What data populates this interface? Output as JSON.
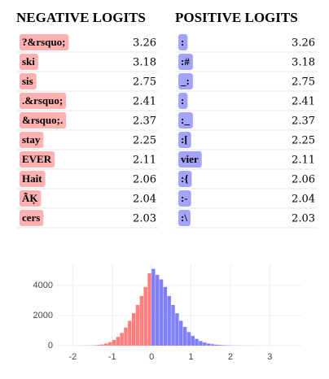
{
  "negative": {
    "title": "NEGATIVE LOGITS",
    "color": "#ffb0b0",
    "rows": [
      [
        "?&rsquo;",
        3.26
      ],
      [
        "ski",
        3.18
      ],
      [
        "sis",
        2.75
      ],
      [
        ".&rsquo;",
        2.41
      ],
      [
        "&rsquo;.",
        2.37
      ],
      [
        "stay",
        2.25
      ],
      [
        "EVER",
        2.11
      ],
      [
        "Hait",
        2.06
      ],
      [
        "ÃĶ",
        2.04
      ],
      [
        "cers",
        2.03
      ]
    ]
  },
  "positive": {
    "title": "POSITIVE LOGITS",
    "color": "#a3a3fb",
    "rows": [
      [
        ":",
        3.26
      ],
      [
        ":#",
        3.18
      ],
      [
        "_:",
        2.75
      ],
      [
        ":",
        2.41
      ],
      [
        ":_",
        2.37
      ],
      [
        ":[",
        2.25
      ],
      [
        "vier",
        2.11
      ],
      [
        ":{",
        2.06
      ],
      [
        ":-",
        2.04
      ],
      [
        ":\\",
        2.03
      ]
    ]
  },
  "chart_data": {
    "type": "histogram",
    "bins": [
      -2.0,
      -1.9,
      -1.8,
      -1.7,
      -1.6,
      -1.5,
      -1.4,
      -1.3,
      -1.2,
      -1.1,
      -1.0,
      -0.9,
      -0.8,
      -0.7,
      -0.6,
      -0.5,
      -0.4,
      -0.3,
      -0.2,
      -0.1,
      0.0,
      0.1,
      0.2,
      0.3,
      0.4,
      0.5,
      0.6,
      0.7,
      0.8,
      0.9,
      1.0,
      1.1,
      1.2,
      1.3,
      1.4,
      1.5,
      1.6,
      1.7,
      1.8,
      1.9,
      2.0,
      2.1,
      2.2,
      2.3,
      2.4,
      2.5,
      2.6,
      2.7,
      2.8,
      2.9,
      3.0,
      3.1,
      3.2,
      3.3,
      3.4,
      3.5,
      3.6
    ],
    "values": [
      2,
      3,
      5,
      8,
      15,
      25,
      45,
      80,
      140,
      230,
      380,
      580,
      850,
      1200,
      1650,
      2150,
      2700,
      3300,
      3900,
      4800,
      5100,
      4700,
      4400,
      3900,
      3300,
      2700,
      2150,
      1650,
      1250,
      900,
      650,
      450,
      310,
      210,
      140,
      95,
      65,
      45,
      30,
      20,
      14,
      10,
      7,
      5,
      4,
      3,
      2,
      2,
      1,
      1,
      1,
      1,
      1,
      1,
      1,
      1
    ],
    "negative_color": "#ff7f7f",
    "positive_color": "#7f7fff",
    "xlim": [
      -2.4,
      3.8
    ],
    "ylim": [
      0,
      5400
    ],
    "xticks": [
      -2,
      -1,
      0,
      1,
      2,
      3
    ],
    "yticks": [
      0,
      2000,
      4000
    ],
    "grid": true
  }
}
